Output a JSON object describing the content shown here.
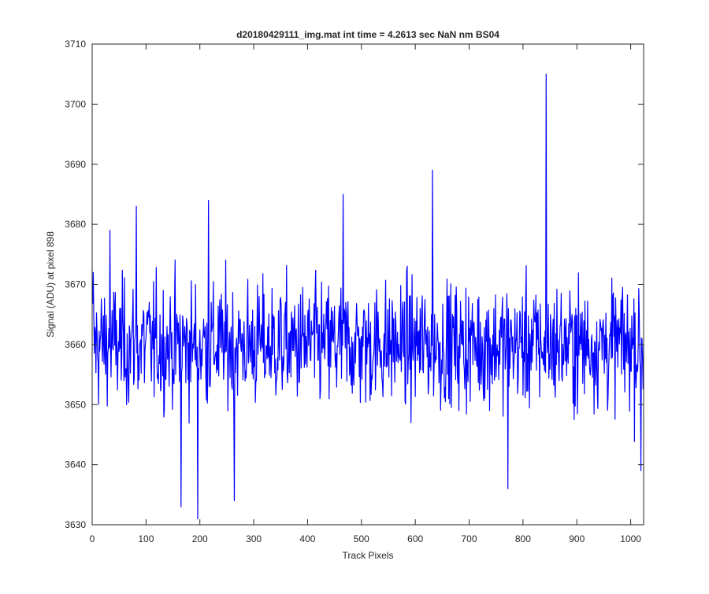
{
  "chart_data": {
    "type": "line",
    "title": "d20180429111_img.mat int time = 4.2613 sec  NaN nm BS04",
    "xlabel": "Track Pixels",
    "ylabel": "Signal (ADU) at pixel 898",
    "xlim": [
      0,
      1024
    ],
    "ylim": [
      3630,
      3710
    ],
    "xticks": [
      0,
      100,
      200,
      300,
      400,
      500,
      600,
      700,
      800,
      900,
      1000
    ],
    "yticks": [
      3630,
      3640,
      3650,
      3660,
      3670,
      3680,
      3690,
      3700,
      3710
    ],
    "grid": false,
    "series": [
      {
        "color": "#0000ff",
        "x_start": 1,
        "x_step": 1,
        "mean": 3660,
        "noise_amplitude": 6,
        "n_points": 1024,
        "notable_points": [
          {
            "x": 2,
            "y": 3672
          },
          {
            "x": 33,
            "y": 3679
          },
          {
            "x": 82,
            "y": 3683
          },
          {
            "x": 165,
            "y": 3633
          },
          {
            "x": 196,
            "y": 3631
          },
          {
            "x": 216,
            "y": 3684
          },
          {
            "x": 264,
            "y": 3634
          },
          {
            "x": 466,
            "y": 3685
          },
          {
            "x": 632,
            "y": 3689
          },
          {
            "x": 772,
            "y": 3636
          },
          {
            "x": 843,
            "y": 3705
          },
          {
            "x": 1019,
            "y": 3639
          }
        ]
      }
    ]
  }
}
